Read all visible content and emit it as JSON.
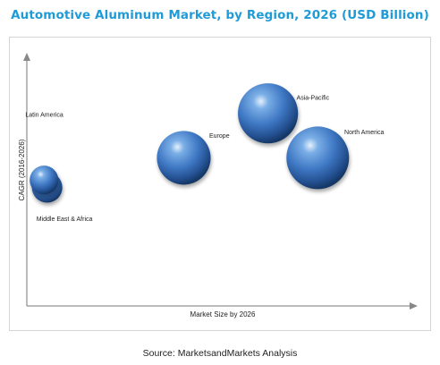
{
  "title": "Automotive Aluminum Market, by Region, 2026 (USD Billion)",
  "source": "Source: MarketsandMarkets Analysis",
  "chart_data": {
    "type": "bubble",
    "xlabel": "Market Size by 2026",
    "ylabel": "CAGR (2016-2026)",
    "xlim": [
      0,
      100
    ],
    "ylim": [
      0,
      100
    ],
    "x_ticks_shown": false,
    "y_ticks_shown": false,
    "grid": false,
    "legend": "none",
    "bubble_color": "#3f78c4",
    "series": [
      {
        "label": "Asia-Pacific",
        "x": 63,
        "y": 78,
        "size": 35
      },
      {
        "label": "North America",
        "x": 76,
        "y": 60,
        "size": 38
      },
      {
        "label": "Europe",
        "x": 41,
        "y": 60,
        "size": 28
      },
      {
        "label": "Latin America",
        "x": 4.5,
        "y": 51,
        "size": 8
      },
      {
        "label": "Middle East & Africa",
        "x": 5.3,
        "y": 48,
        "size": 9
      }
    ]
  }
}
